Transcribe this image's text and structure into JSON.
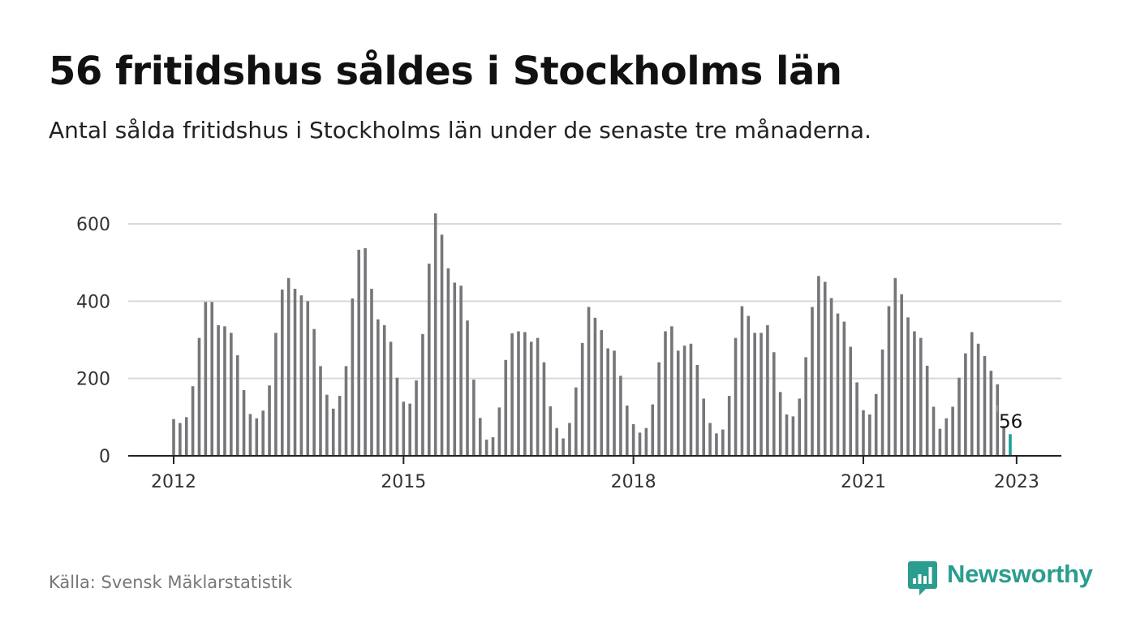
{
  "header": {
    "title": "56 fritidshus såldes i Stockholms län",
    "subtitle": "Antal sålda fritidshus i Stockholms län under de senaste tre månaderna."
  },
  "footer": {
    "source": "Källa: Svensk Mäklarstatistik",
    "brand": "Newsworthy",
    "brand_color": "#2a9d8f"
  },
  "colors": {
    "bar": "#76767a",
    "highlight": "#1a9e94",
    "grid": "#d9d9d9",
    "axis": "#222222",
    "tick_text": "#333333"
  },
  "chart_data": {
    "type": "bar",
    "x_ticks": [
      "2012",
      "2015",
      "2018",
      "2021",
      "2023"
    ],
    "y_ticks": [
      0,
      200,
      400,
      600
    ],
    "ylim": [
      0,
      650
    ],
    "grid": true,
    "start_period": "2012-01",
    "values": [
      95,
      85,
      100,
      180,
      305,
      398,
      398,
      338,
      335,
      318,
      260,
      170,
      108,
      97,
      117,
      182,
      318,
      430,
      460,
      432,
      415,
      400,
      328,
      232,
      158,
      122,
      155,
      232,
      407,
      533,
      537,
      432,
      353,
      338,
      295,
      202,
      140,
      135,
      195,
      315,
      497,
      627,
      572,
      485,
      448,
      440,
      350,
      197,
      98,
      42,
      48,
      125,
      248,
      317,
      322,
      320,
      295,
      305,
      242,
      128,
      72,
      45,
      85,
      177,
      292,
      385,
      357,
      325,
      278,
      272,
      207,
      130,
      82,
      60,
      72,
      133,
      242,
      322,
      335,
      272,
      285,
      290,
      235,
      148,
      85,
      58,
      68,
      155,
      305,
      387,
      362,
      318,
      318,
      338,
      268,
      165,
      107,
      102,
      148,
      255,
      385,
      465,
      450,
      408,
      368,
      347,
      282,
      190,
      118,
      107,
      160,
      275,
      387,
      460,
      418,
      358,
      322,
      305,
      233,
      127,
      70,
      97,
      127,
      202,
      265,
      320,
      290,
      258,
      220,
      185,
      77,
      56
    ],
    "highlight_label": "56"
  }
}
